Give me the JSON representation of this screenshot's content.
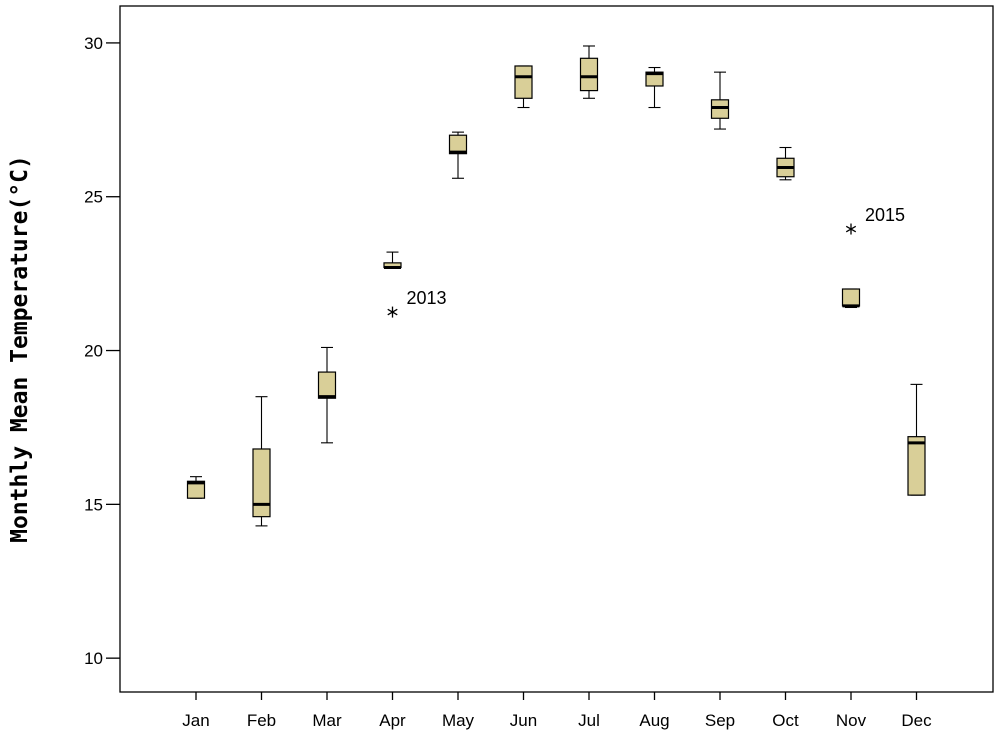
{
  "chart_data": {
    "type": "boxplot",
    "title": "",
    "xlabel": "",
    "ylabel": "Monthly Mean Temperature(°C)",
    "ylim": [
      8.9,
      31.2
    ],
    "yticks": [
      10,
      15,
      20,
      25,
      30
    ],
    "grid": false,
    "box_fill_color": "#d9cf98",
    "categories": [
      "Jan",
      "Feb",
      "Mar",
      "Apr",
      "May",
      "Jun",
      "Jul",
      "Aug",
      "Sep",
      "Oct",
      "Nov",
      "Dec"
    ],
    "boxes": [
      {
        "min": 15.2,
        "q1": 15.2,
        "median": 15.7,
        "q3": 15.75,
        "max": 15.9
      },
      {
        "min": 14.3,
        "q1": 14.6,
        "median": 15.0,
        "q3": 16.8,
        "max": 18.5
      },
      {
        "min": 17.0,
        "q1": 18.45,
        "median": 18.5,
        "q3": 19.3,
        "max": 20.1
      },
      {
        "min": 22.7,
        "q1": 22.7,
        "median": 22.7,
        "q3": 22.85,
        "max": 23.2
      },
      {
        "min": 25.6,
        "q1": 26.4,
        "median": 26.45,
        "q3": 27.0,
        "max": 27.1
      },
      {
        "min": 27.9,
        "q1": 28.2,
        "median": 28.9,
        "q3": 29.25,
        "max": 29.25
      },
      {
        "min": 28.2,
        "q1": 28.45,
        "median": 28.9,
        "q3": 29.5,
        "max": 29.9
      },
      {
        "min": 27.9,
        "q1": 28.6,
        "median": 29.0,
        "q3": 29.05,
        "max": 29.2
      },
      {
        "min": 27.2,
        "q1": 27.55,
        "median": 27.9,
        "q3": 28.15,
        "max": 29.05
      },
      {
        "min": 25.55,
        "q1": 25.65,
        "median": 25.95,
        "q3": 26.25,
        "max": 26.6
      },
      {
        "min": 21.4,
        "q1": 21.45,
        "median": 21.45,
        "q3": 22.0,
        "max": 22.0
      },
      {
        "min": 15.3,
        "q1": 15.3,
        "median": 17.0,
        "q3": 17.2,
        "max": 18.9
      }
    ],
    "outliers": [
      {
        "month": "Apr",
        "value": 21.25,
        "label": "2013"
      },
      {
        "month": "Nov",
        "value": 23.95,
        "label": "2015"
      }
    ]
  }
}
